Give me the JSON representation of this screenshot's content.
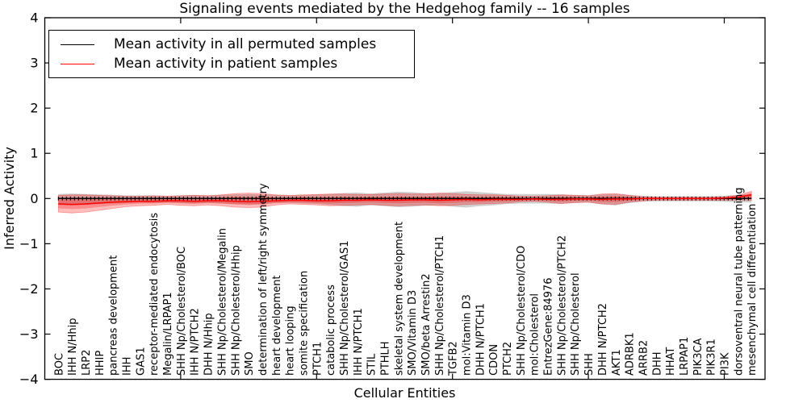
{
  "title": "Signaling events mediated by the Hedgehog family -- 16 samples",
  "legend": {
    "items": [
      {
        "label": "Mean activity in all permuted samples",
        "color": "#000000"
      },
      {
        "label": "Mean activity in patient samples",
        "color": "#ff0000"
      }
    ],
    "position": "upper left"
  },
  "chart_data": {
    "type": "line",
    "title": "Signaling events mediated by the Hedgehog family -- 16 samples",
    "xlabel": "Cellular Entities",
    "ylabel": "Inferred Activity",
    "ylim": [
      -4,
      4
    ],
    "yticks": [
      -4,
      -3,
      -2,
      -1,
      0,
      1,
      2,
      3,
      4
    ],
    "xticks_top": [
      10,
      20,
      30,
      40,
      50
    ],
    "grid": false,
    "legend_position": "upper left",
    "colors": {
      "permuted_line": "#000000",
      "patient_line": "#ff0000",
      "permuted_band": "rgba(125,125,125,0.38)",
      "patient_band": "rgba(255,0,0,0.26)"
    },
    "categories": [
      "BOC",
      "IHH N/Hhip",
      "LRP2",
      "HHIP",
      "pancreas development",
      "IHH",
      "GAS1",
      "receptor-mediated endocytosis",
      "Megalin/LRPAP1",
      "SHH Np/Cholesterol/BOC",
      "IHH N/PTCH2",
      "DHH N/Hhip",
      "SHH Np/Cholesterol/Megalin",
      "SHH Np/Cholesterol/Hhip",
      "SMO",
      "determination of left/right symmetry",
      "heart development",
      "heart looping",
      "somite specification",
      "PTCH1",
      "catabolic process",
      "SHH Np/Cholesterol/GAS1",
      "IHH N/PTCH1",
      "STIL",
      "PTHLH",
      "skeletal system development",
      "SMO/Vitamin D3",
      "SMO/beta Arrestin2",
      "SHH Np/Cholesterol/PTCH1",
      "TGFB2",
      "mol:Vitamin D3",
      "DHH N/PTCH1",
      "CDON",
      "PTCH2",
      "SHH Np/Cholesterol/CDO",
      "mol:Cholesterol",
      "EntrezGene:84976",
      "SHH Np/Cholesterol/PTCH2",
      "SHH Np/Cholesterol",
      "SHH",
      "DHH N/PTCH2",
      "AKT1",
      "ADRBK1",
      "ARRB2",
      "DHH",
      "HHAT",
      "LRPAP1",
      "PIK3CA",
      "PIK3R1",
      "PI3K",
      "dorsoventral neural tube patterning",
      "mesenchymal cell differentiation"
    ],
    "series": [
      {
        "name": "Mean activity in all permuted samples",
        "color": "#000000",
        "values": [
          0,
          0,
          0,
          0,
          0,
          0,
          0,
          0,
          0,
          0,
          0,
          0,
          0,
          0,
          0,
          0,
          0,
          0,
          0,
          0,
          0,
          0,
          0,
          0,
          0,
          0,
          0,
          0,
          0,
          0,
          0,
          0,
          0,
          0,
          0,
          0,
          0,
          0,
          0,
          0,
          0,
          0,
          0,
          0,
          0,
          0,
          0,
          0,
          0,
          0,
          0,
          0
        ],
        "band_upper": [
          0.1,
          0.11,
          0.1,
          0.09,
          0.08,
          0.07,
          0.07,
          0.07,
          0.06,
          0.07,
          0.08,
          0.07,
          0.08,
          0.09,
          0.1,
          0.09,
          0.08,
          0.07,
          0.08,
          0.09,
          0.1,
          0.12,
          0.13,
          0.11,
          0.13,
          0.15,
          0.14,
          0.12,
          0.12,
          0.14,
          0.16,
          0.14,
          0.12,
          0.1,
          0.1,
          0.1,
          0.1,
          0.09,
          0.08,
          0.07,
          0.09,
          0.1,
          0.08,
          0.06,
          0.05,
          0.05,
          0.05,
          0.05,
          0.05,
          0.06,
          0.08,
          0.1
        ],
        "band_lower": [
          -0.14,
          -0.15,
          -0.14,
          -0.12,
          -0.11,
          -0.1,
          -0.09,
          -0.1,
          -0.09,
          -0.1,
          -0.11,
          -0.1,
          -0.11,
          -0.12,
          -0.13,
          -0.12,
          -0.1,
          -0.1,
          -0.11,
          -0.12,
          -0.14,
          -0.17,
          -0.18,
          -0.15,
          -0.17,
          -0.19,
          -0.18,
          -0.16,
          -0.15,
          -0.18,
          -0.2,
          -0.17,
          -0.15,
          -0.12,
          -0.11,
          -0.11,
          -0.11,
          -0.12,
          -0.1,
          -0.09,
          -0.13,
          -0.15,
          -0.1,
          -0.07,
          -0.06,
          -0.06,
          -0.06,
          -0.06,
          -0.06,
          -0.07,
          -0.08,
          -0.09
        ]
      },
      {
        "name": "Mean activity in patient samples",
        "color": "#ff0000",
        "values": [
          -0.12,
          -0.13,
          -0.12,
          -0.1,
          -0.08,
          -0.07,
          -0.06,
          -0.06,
          -0.05,
          -0.05,
          -0.06,
          -0.05,
          -0.05,
          -0.06,
          -0.07,
          -0.06,
          -0.05,
          -0.04,
          -0.04,
          -0.05,
          -0.05,
          -0.04,
          -0.04,
          -0.03,
          -0.04,
          -0.04,
          -0.03,
          -0.03,
          -0.04,
          -0.03,
          -0.02,
          -0.03,
          -0.02,
          -0.02,
          -0.02,
          -0.01,
          -0.02,
          -0.02,
          -0.01,
          -0.01,
          -0.02,
          -0.01,
          -0.01,
          0.0,
          0.0,
          0.0,
          0.0,
          0.0,
          0.0,
          0.01,
          0.03,
          0.08
        ],
        "band_upper": [
          0.07,
          0.08,
          0.08,
          0.07,
          0.06,
          0.05,
          0.05,
          0.06,
          0.05,
          0.06,
          0.07,
          0.06,
          0.08,
          0.11,
          0.12,
          0.11,
          0.08,
          0.07,
          0.08,
          0.09,
          0.1,
          0.1,
          0.09,
          0.09,
          0.1,
          0.11,
          0.1,
          0.1,
          0.12,
          0.11,
          0.09,
          0.08,
          0.08,
          0.07,
          0.05,
          0.05,
          0.06,
          0.08,
          0.07,
          0.06,
          0.1,
          0.11,
          0.07,
          0.04,
          0.03,
          0.03,
          0.03,
          0.03,
          0.03,
          0.04,
          0.07,
          0.16
        ],
        "band_lower": [
          -0.3,
          -0.32,
          -0.3,
          -0.26,
          -0.22,
          -0.18,
          -0.16,
          -0.15,
          -0.13,
          -0.15,
          -0.16,
          -0.14,
          -0.16,
          -0.19,
          -0.2,
          -0.19,
          -0.14,
          -0.12,
          -0.13,
          -0.14,
          -0.16,
          -0.15,
          -0.14,
          -0.13,
          -0.15,
          -0.16,
          -0.15,
          -0.14,
          -0.16,
          -0.15,
          -0.13,
          -0.12,
          -0.11,
          -0.1,
          -0.07,
          -0.06,
          -0.08,
          -0.11,
          -0.09,
          -0.08,
          -0.12,
          -0.13,
          -0.08,
          -0.05,
          -0.04,
          -0.04,
          -0.04,
          -0.04,
          -0.04,
          -0.04,
          -0.03,
          -0.04
        ]
      }
    ]
  }
}
